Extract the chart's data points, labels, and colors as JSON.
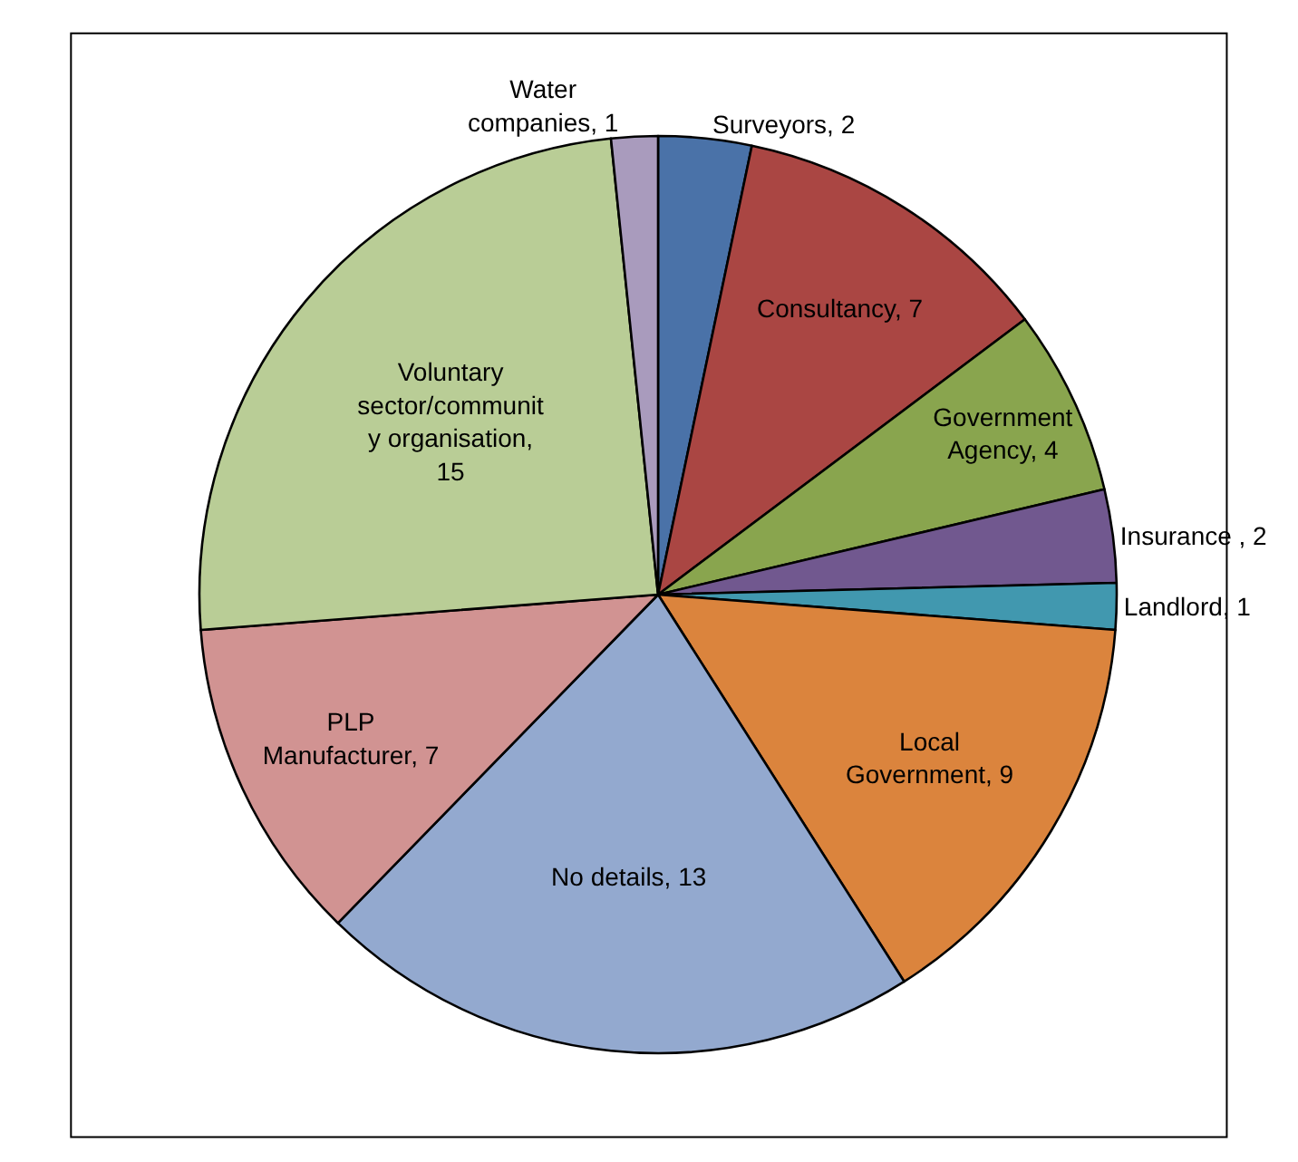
{
  "chart_data": {
    "type": "pie",
    "categories": [
      "Surveyors, 2",
      "Consultancy, 7",
      "Government\nAgency, 4",
      "Insurance , 2",
      "Landlord, 1",
      "Local\nGovernment, 9",
      "No details, 13",
      "PLP\nManufacturer, 7",
      "Voluntary\nsector/communit\ny organisation,\n15",
      "Water\ncompanies, 1"
    ],
    "values": [
      2,
      7,
      4,
      2,
      1,
      9,
      13,
      7,
      15,
      1
    ],
    "colors": [
      "#4a72a8",
      "#aa4643",
      "#89a54e",
      "#71588f",
      "#4198af",
      "#db843d",
      "#93a9cf",
      "#d19392",
      "#b9cd96",
      "#a99bbd"
    ],
    "legend": false
  }
}
